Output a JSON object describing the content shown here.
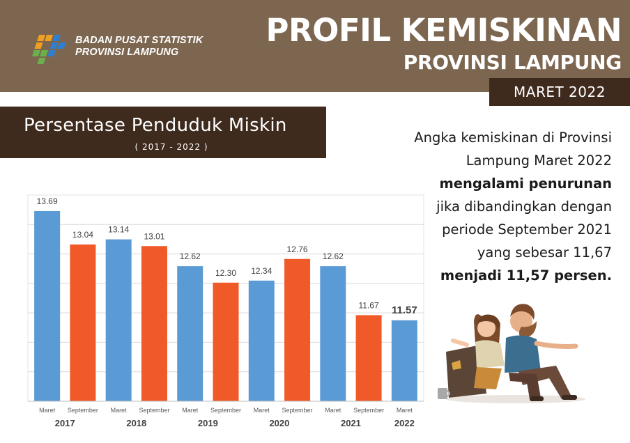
{
  "header": {
    "org_line1": "BADAN PUSAT STATISTIK",
    "org_line2": "PROVINSI LAMPUNG",
    "title": "PROFIL KEMISKINAN",
    "subtitle": "PROVINSI LAMPUNG",
    "date": "MARET 2022"
  },
  "chart_box": {
    "title": "Persentase Penduduk Miskin",
    "subtitle": "( 2017 - 2022 )"
  },
  "narrative": {
    "line1": "Angka kemiskinan di Provinsi",
    "line2": "Lampung Maret 2022",
    "line3": "mengalami penurunan",
    "line4": "jika dibandingkan dengan",
    "line5": "periode September 2021",
    "line6": "yang sebesar 11,67",
    "line7": "menjadi 11,57 persen."
  },
  "colors": {
    "header_bg": "#7d6650",
    "dark_box": "#3f2a1e",
    "maret_bar": "#5b9bd5",
    "september_bar": "#f05a28",
    "grid": "#d9d9d9"
  },
  "chart_data": {
    "type": "bar",
    "title": "Persentase Penduduk Miskin",
    "subtitle": "( 2017 - 2022 )",
    "xlabel": "",
    "ylabel": "",
    "ylim": [
      10,
      14
    ],
    "grid": true,
    "legend": "none",
    "categories": [
      "Maret",
      "September",
      "Maret",
      "September",
      "Maret",
      "September",
      "Maret",
      "September",
      "Maret",
      "September",
      "Maret"
    ],
    "years": [
      "2017",
      "2018",
      "2019",
      "2020",
      "2021",
      "2022"
    ],
    "values": [
      13.69,
      13.04,
      13.14,
      13.01,
      12.62,
      12.3,
      12.34,
      12.76,
      12.62,
      11.67,
      11.57
    ],
    "value_labels": [
      "13.69",
      "13.04",
      "13.14",
      "13.01",
      "12.62",
      "12.30",
      "12.34",
      "12.76",
      "12.62",
      "11.67",
      "11.57"
    ],
    "bar_colors": [
      "#5b9bd5",
      "#f05a28",
      "#5b9bd5",
      "#f05a28",
      "#5b9bd5",
      "#f05a28",
      "#5b9bd5",
      "#f05a28",
      "#5b9bd5",
      "#f05a28",
      "#5b9bd5"
    ]
  }
}
